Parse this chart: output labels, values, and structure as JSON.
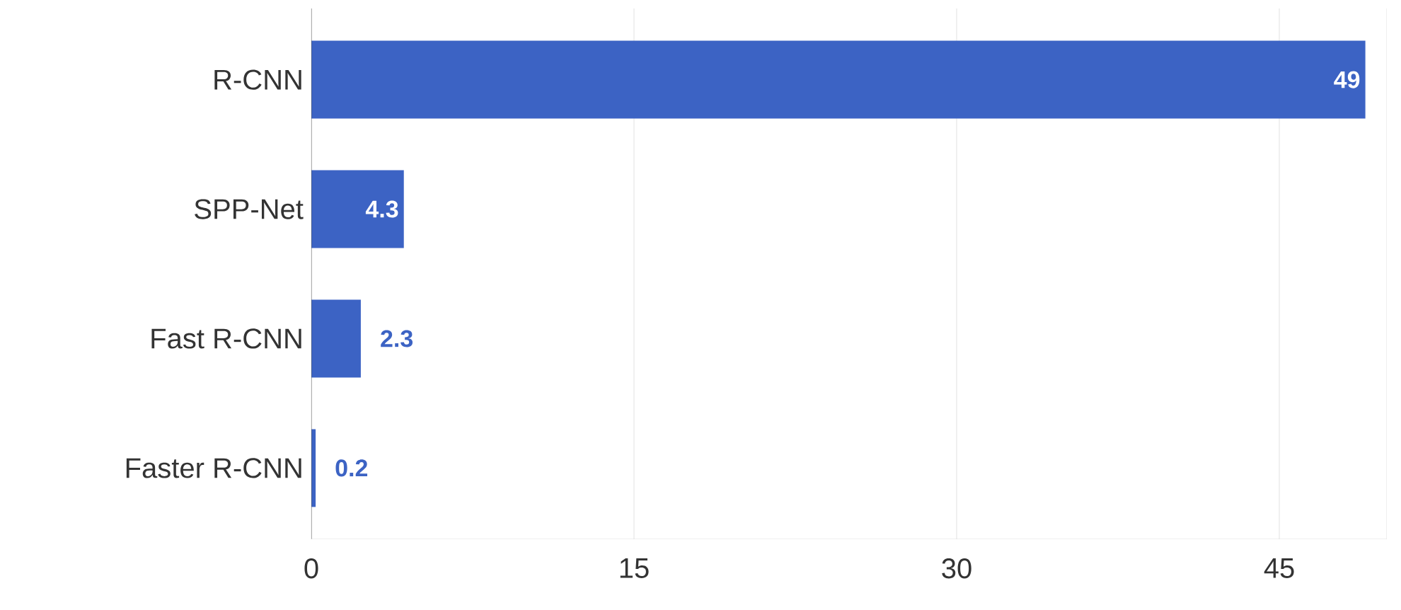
{
  "chart_data": {
    "type": "bar",
    "orientation": "horizontal",
    "categories": [
      "R-CNN",
      "SPP-Net",
      "Fast R-CNN",
      "Faster R-CNN"
    ],
    "values": [
      49,
      4.3,
      2.3,
      0.2
    ],
    "color": "#3c63c4",
    "xlim": [
      0,
      50
    ],
    "xticks": [
      0,
      15,
      30,
      45
    ],
    "grid": "x",
    "data_labels": true
  }
}
